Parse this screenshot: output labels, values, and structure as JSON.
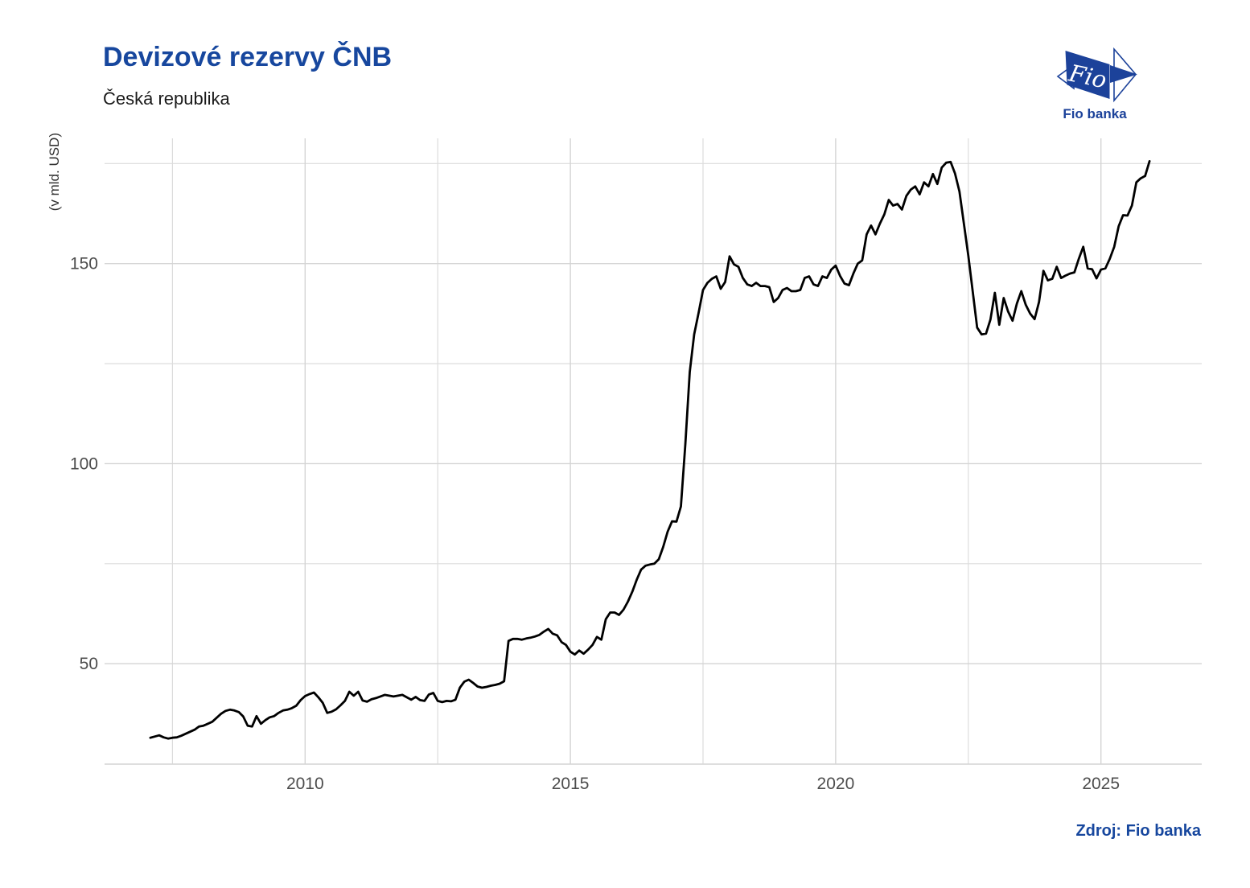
{
  "header": {
    "title": "Devizové rezervy ČNB",
    "subtitle": "Česká republika"
  },
  "axis": {
    "y_label": "(v mld. USD)"
  },
  "source": {
    "label": "Zdroj: Fio banka"
  },
  "logo": {
    "name": "fio-banka-logo",
    "mark_text": "Fio",
    "caption": "Fio banka"
  },
  "colors": {
    "title": "#17479e",
    "subtitle": "#1a1a1a",
    "source": "#17479e",
    "logo_blue": "#1c429a",
    "axis_text": "#4d4d4d",
    "grid_major": "#d4d4d4",
    "grid_minor": "#dcdcdc",
    "axis_line": "#d4d4d4",
    "line": "#000000"
  },
  "chart_data": {
    "type": "line",
    "title": "Devizové rezervy ČNB",
    "subtitle": "Česká republika",
    "xlabel": "",
    "ylabel": "(v mld. USD)",
    "series_name": "Devizové rezervy ČNB (v mld. USD)",
    "frequency": "monthly",
    "start": "2007-02",
    "end": "2025-12",
    "grid": true,
    "legend": false,
    "xlim": [
      2006.22,
      2026.9
    ],
    "ylim": [
      24.9,
      181.3
    ],
    "x_ticks_major": [
      2010,
      2015,
      2020,
      2025
    ],
    "x_tick_labels": [
      "2010",
      "2015",
      "2020",
      "2025"
    ],
    "x_ticks_minor": [
      2007.5,
      2012.5,
      2017.5,
      2022.5
    ],
    "y_ticks_major": [
      50,
      100,
      150
    ],
    "y_tick_labels": [
      "50",
      "100",
      "150"
    ],
    "y_ticks_minor": [
      75,
      125,
      175
    ],
    "values": [
      31.5,
      31.8,
      32.1,
      31.6,
      31.3,
      31.5,
      31.6,
      32.0,
      32.5,
      33.0,
      33.5,
      34.3,
      34.5,
      35.0,
      35.5,
      36.5,
      37.5,
      38.2,
      38.5,
      38.3,
      37.9,
      36.8,
      34.5,
      34.3,
      36.9,
      35.0,
      35.9,
      36.6,
      36.9,
      37.7,
      38.3,
      38.5,
      38.9,
      39.5,
      40.9,
      41.9,
      42.4,
      42.8,
      41.6,
      40.2,
      37.7,
      38.0,
      38.6,
      39.6,
      40.7,
      43.0,
      42.0,
      43.0,
      40.8,
      40.5,
      41.1,
      41.4,
      41.8,
      42.2,
      42.0,
      41.8,
      42.0,
      42.2,
      41.6,
      41.0,
      41.7,
      40.9,
      40.7,
      42.3,
      42.7,
      40.7,
      40.4,
      40.7,
      40.6,
      41.0,
      44.0,
      45.5,
      46.0,
      45.2,
      44.3,
      44.0,
      44.2,
      44.5,
      44.7,
      45.0,
      45.6,
      55.7,
      56.2,
      56.2,
      56.0,
      56.3,
      56.5,
      56.8,
      57.2,
      58.0,
      58.7,
      57.5,
      57.1,
      55.4,
      54.7,
      53.0,
      52.3,
      53.3,
      52.5,
      53.5,
      54.7,
      56.7,
      56.0,
      61.1,
      62.8,
      62.8,
      62.2,
      63.5,
      65.5,
      68.0,
      71.0,
      73.5,
      74.5,
      74.8,
      75.0,
      76.1,
      79.2,
      83.0,
      85.6,
      85.5,
      89.3,
      104.8,
      122.9,
      132.3,
      137.7,
      143.4,
      145.2,
      146.2,
      146.8,
      143.7,
      145.4,
      151.8,
      149.8,
      149.2,
      146.4,
      144.8,
      144.4,
      145.2,
      144.4,
      144.4,
      144.1,
      140.4,
      141.4,
      143.4,
      143.9,
      143.1,
      143.1,
      143.4,
      146.4,
      146.8,
      144.8,
      144.4,
      146.8,
      146.4,
      148.5,
      149.5,
      146.9,
      145.0,
      144.6,
      147.5,
      150.0,
      150.8,
      157.3,
      159.5,
      157.3,
      160.0,
      162.3,
      165.9,
      164.5,
      164.9,
      163.5,
      166.9,
      168.5,
      169.3,
      167.3,
      170.3,
      169.3,
      172.4,
      169.9,
      174.0,
      175.2,
      175.4,
      172.5,
      168.0,
      160.0,
      152.0,
      143.0,
      134.0,
      132.3,
      132.5,
      136.0,
      142.7,
      134.7,
      141.4,
      138.0,
      135.7,
      140.0,
      143.1,
      139.7,
      137.5,
      136.1,
      140.4,
      148.2,
      145.8,
      146.2,
      149.2,
      146.4,
      147.0,
      147.5,
      147.8,
      151.2,
      154.2,
      148.8,
      148.6,
      146.3,
      148.5,
      148.8,
      151.2,
      154.2,
      159.3,
      162.1,
      162.0,
      164.5,
      170.3,
      171.3,
      171.9,
      175.6
    ]
  }
}
